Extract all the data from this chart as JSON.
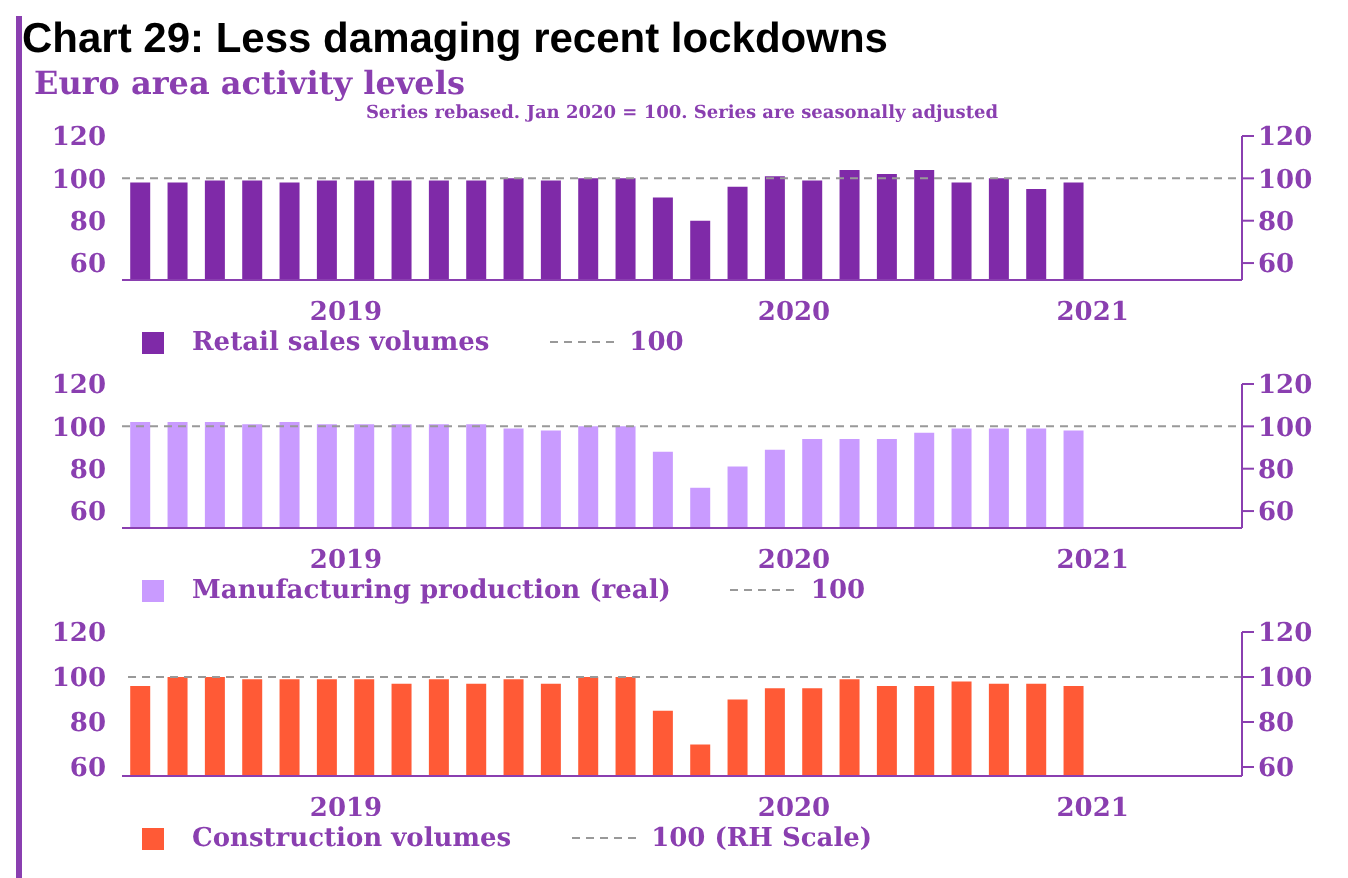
{
  "chart_data": [
    {
      "type": "bar",
      "title": "Chart 29: Less damaging recent lockdowns",
      "subtitle": "Euro area activity levels",
      "annotations": [
        "Series rebased. Jan 2020 = 100. Series are seasonally adjusted"
      ],
      "categories": [
        null,
        null,
        null,
        null,
        null,
        "2019",
        null,
        null,
        null,
        null,
        null,
        null,
        null,
        null,
        null,
        null,
        null,
        "2020",
        null,
        null,
        null,
        null,
        null,
        null,
        null,
        "2021",
        null,
        null,
        null,
        null
      ],
      "series": [
        {
          "name": "Retail sales volumes",
          "color": "#7f2aa8",
          "values": [
            98,
            98,
            99,
            99,
            98,
            99,
            99,
            99,
            99,
            99,
            100,
            99,
            100,
            100,
            91,
            80,
            96,
            101,
            99,
            104,
            102,
            104,
            98,
            100,
            95,
            98,
            null,
            null,
            null,
            null
          ]
        }
      ],
      "ylim": [
        52,
        120
      ],
      "yticks": [
        60,
        80,
        100,
        120
      ],
      "y2lim": [
        52,
        120
      ],
      "y2ticks": [
        60,
        80,
        100,
        120
      ],
      "ref_lines": [
        {
          "axis": "y",
          "value": 100,
          "label": "100",
          "color": "#999999",
          "line_style": "dashed"
        }
      ],
      "grid": false,
      "legend": "bottom"
    },
    {
      "type": "bar",
      "categories": [
        null,
        null,
        null,
        null,
        null,
        "2019",
        null,
        null,
        null,
        null,
        null,
        null,
        null,
        null,
        null,
        null,
        null,
        "2020",
        null,
        null,
        null,
        null,
        null,
        null,
        null,
        "2021",
        null,
        null,
        null,
        null
      ],
      "series": [
        {
          "name": "Manufacturing production (real)",
          "color": "#c99bff",
          "values": [
            102,
            102,
            102,
            101,
            102,
            101,
            101,
            101,
            101,
            101,
            99,
            98,
            100,
            100,
            88,
            71,
            81,
            89,
            94,
            94,
            94,
            97,
            99,
            99,
            99,
            98,
            null,
            null,
            null,
            null
          ]
        }
      ],
      "ylim": [
        52,
        120
      ],
      "yticks": [
        60,
        80,
        100,
        120
      ],
      "y2lim": [
        52,
        120
      ],
      "y2ticks": [
        60,
        80,
        100,
        120
      ],
      "ref_lines": [
        {
          "axis": "y",
          "value": 100,
          "label": "100",
          "color": "#999999",
          "line_style": "dashed"
        }
      ],
      "grid": false,
      "legend": "bottom"
    },
    {
      "type": "bar",
      "categories": [
        null,
        null,
        null,
        null,
        null,
        "2019",
        null,
        null,
        null,
        null,
        null,
        null,
        null,
        null,
        null,
        null,
        null,
        "2020",
        null,
        null,
        null,
        null,
        null,
        null,
        null,
        "2021",
        null,
        null,
        null,
        null
      ],
      "series": [
        {
          "name": "Construction volumes",
          "color": "#ff5a36",
          "values": [
            96,
            100,
            100,
            99,
            99,
            99,
            99,
            97,
            99,
            97,
            99,
            97,
            100,
            100,
            85,
            70,
            90,
            95,
            95,
            99,
            96,
            96,
            98,
            97,
            97,
            96,
            null,
            null,
            null,
            null
          ]
        }
      ],
      "ylim": [
        56,
        120
      ],
      "yticks": [
        60,
        80,
        100,
        120
      ],
      "y2lim": [
        56,
        120
      ],
      "y2ticks": [
        60,
        80,
        100,
        120
      ],
      "ref_lines": [
        {
          "axis": "y2",
          "value": 100,
          "label": "100 (RH Scale)",
          "color": "#999999",
          "line_style": "dashed"
        }
      ],
      "grid": false,
      "legend": "bottom"
    }
  ]
}
